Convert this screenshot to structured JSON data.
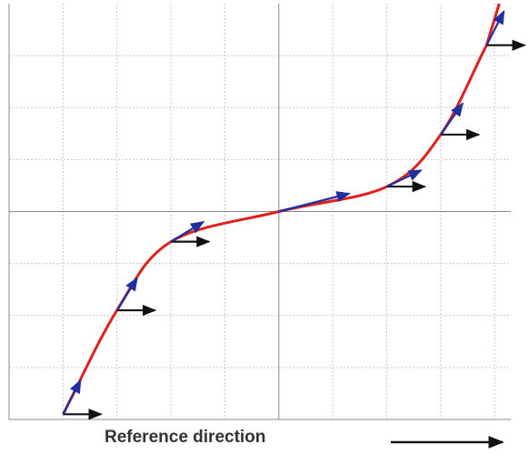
{
  "caption": "Reference direction",
  "colors": {
    "curve": "#e0201c",
    "tangent": "#1f2f9e",
    "reference": "#111111",
    "grid": "#c9c9c9",
    "axis": "#8a8a8a"
  },
  "tangent_points": [
    {
      "x": -4.0,
      "y": -3.9
    },
    {
      "x": -3.0,
      "y": -1.9
    },
    {
      "x": -2.0,
      "y": -0.58
    },
    {
      "x": 0.0,
      "y": 0.0
    },
    {
      "x": 2.0,
      "y": 0.48
    },
    {
      "x": 3.0,
      "y": 1.48
    },
    {
      "x": 3.85,
      "y": 3.2
    }
  ]
}
